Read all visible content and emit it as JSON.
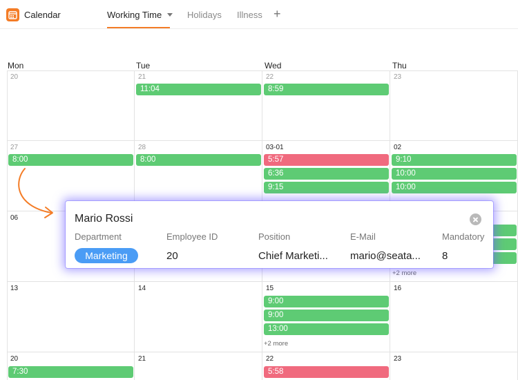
{
  "app": {
    "title": "Calendar",
    "icon": "calendar-app-icon",
    "accent": "#f47c26"
  },
  "tabs": [
    {
      "label": "Working Time",
      "active": true
    },
    {
      "label": "Holidays",
      "active": false
    },
    {
      "label": "Illness",
      "active": false
    }
  ],
  "tab_add": "+",
  "weekdays": [
    "Mon",
    "Tue",
    "Wed",
    "Thu"
  ],
  "weeks": [
    {
      "days": [
        "20",
        "21",
        "22",
        "23"
      ]
    },
    {
      "days": [
        "27",
        "28",
        "03-01",
        "02"
      ]
    },
    {
      "days": [
        "06",
        "",
        "",
        ""
      ]
    },
    {
      "days": [
        "13",
        "14",
        "15",
        "16"
      ]
    },
    {
      "days": [
        "20",
        "21",
        "22",
        "23"
      ]
    }
  ],
  "events": {
    "tue21": "11:04",
    "wed22": "8:59",
    "mon27": "8:00",
    "tue28": "8:00",
    "wed01": [
      "5:57",
      "6:36",
      "9:15"
    ],
    "thu02": [
      "9:10",
      "10:00",
      "10:00"
    ],
    "wed15": [
      "9:00",
      "9:00",
      "13:00"
    ],
    "mon20": "7:30",
    "wed22b": "5:58"
  },
  "more": {
    "thu09": "+2 more",
    "wed15": "+2 more"
  },
  "colors": {
    "present": "#5ecb74",
    "late": "#f06a7e",
    "badge": "#4a9cf5"
  },
  "popup": {
    "name": "Mario Rossi",
    "headers": [
      "Department",
      "Employee ID",
      "Position",
      "E-Mail",
      "Mandatory"
    ],
    "department": "Marketing",
    "employee_id": "20",
    "position": "Chief Marketi...",
    "email": "mario@seata...",
    "mandatory": "8"
  }
}
